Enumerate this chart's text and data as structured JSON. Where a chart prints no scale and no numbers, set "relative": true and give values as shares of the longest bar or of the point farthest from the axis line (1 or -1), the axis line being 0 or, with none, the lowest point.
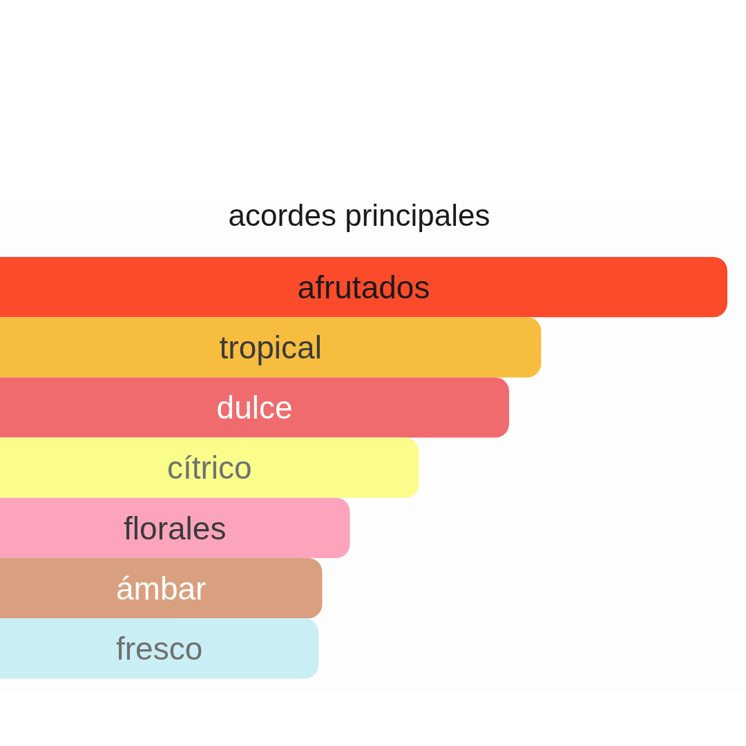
{
  "chart_data": {
    "type": "bar",
    "orientation": "horizontal",
    "relative": true,
    "title": "acordes principales",
    "categories": [
      "afrutados",
      "tropical",
      "dulce",
      "cítrico",
      "florales",
      "ámbar",
      "fresco"
    ],
    "values": [
      1,
      0.744,
      0.7,
      0.576,
      0.481,
      0.443,
      0.438
    ],
    "colors": [
      "#fc4b2a",
      "#f7bd3f",
      "#f06b6d",
      "#fafd8a",
      "#fda4bd",
      "#d9a07f",
      "#c9eff4"
    ]
  }
}
